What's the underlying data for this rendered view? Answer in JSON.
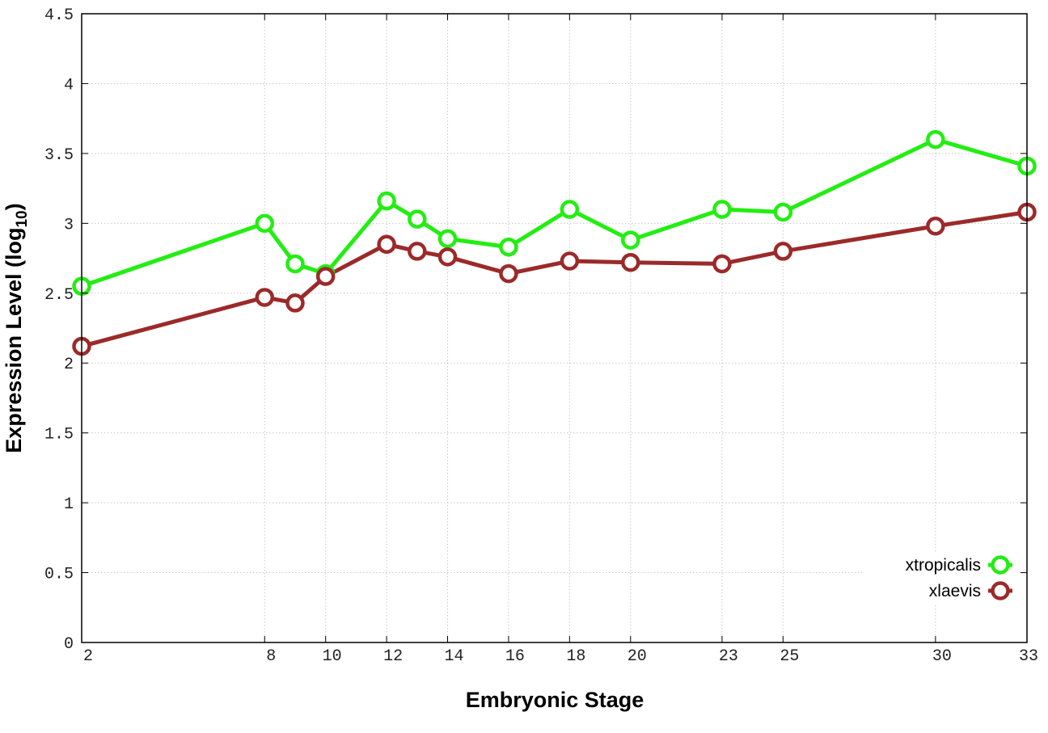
{
  "chart_data": {
    "type": "line",
    "xlabel": "Embryonic Stage",
    "ylabel_main": "Expression Level (log",
    "ylabel_sub": "10",
    "ylabel_close": ")",
    "xlim": [
      2,
      33
    ],
    "ylim": [
      0,
      4.5
    ],
    "x_ticks": [
      2,
      8,
      10,
      12,
      14,
      16,
      18,
      20,
      23,
      25,
      30,
      33
    ],
    "x_tick_labels": [
      "2",
      "8",
      "10",
      "12",
      "14",
      "16",
      "18",
      "20",
      "23",
      "25",
      "30",
      "33"
    ],
    "y_ticks": [
      0,
      0.5,
      1,
      1.5,
      2,
      2.5,
      3,
      3.5,
      4,
      4.5
    ],
    "y_tick_labels": [
      "0",
      "0.5",
      "1",
      "1.5",
      "2",
      "2.5",
      "3",
      "3.5",
      "4",
      "4.5"
    ],
    "grid": true,
    "legend_position": "bottom-right",
    "x": [
      2,
      8,
      9,
      10,
      12,
      13,
      14,
      16,
      18,
      20,
      23,
      25,
      30,
      33
    ],
    "series": [
      {
        "name": "xtropicalis",
        "color": "#22ee11",
        "values": [
          2.55,
          3.0,
          2.71,
          2.64,
          3.16,
          3.03,
          2.89,
          2.83,
          3.1,
          2.88,
          3.1,
          3.08,
          3.6,
          3.41
        ]
      },
      {
        "name": "xlaevis",
        "color": "#9b2a2a",
        "values": [
          2.12,
          2.47,
          2.43,
          2.62,
          2.85,
          2.8,
          2.76,
          2.64,
          2.73,
          2.72,
          2.71,
          2.8,
          2.98,
          3.08
        ]
      }
    ]
  }
}
